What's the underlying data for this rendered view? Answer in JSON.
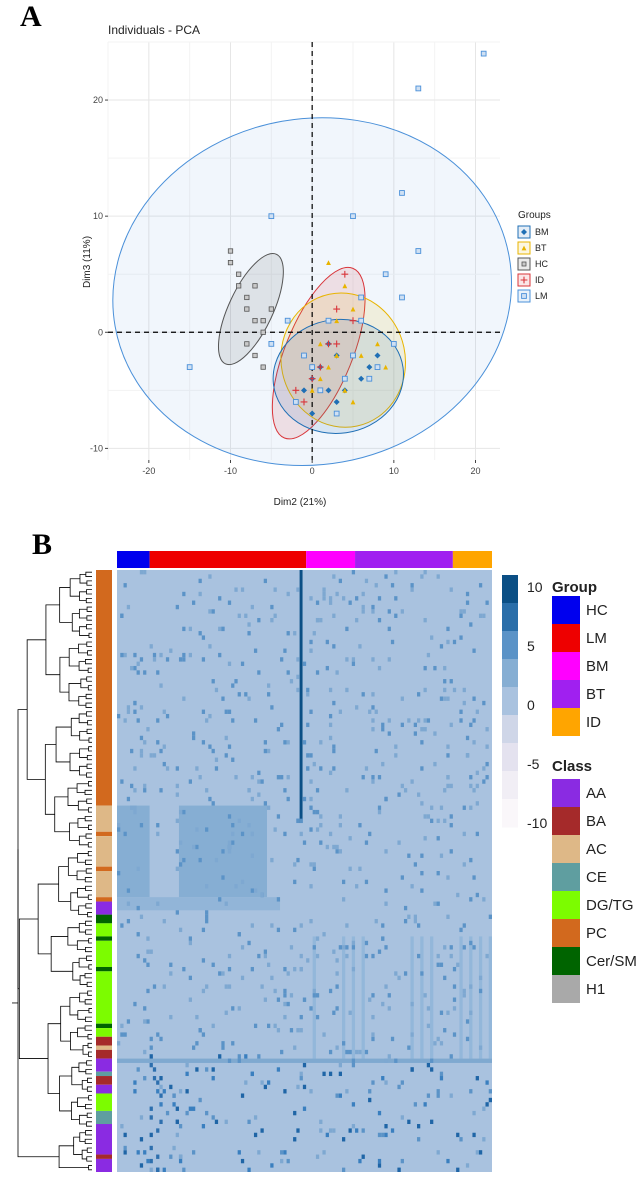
{
  "chart_data": [
    {
      "type": "scatter",
      "panel_label": "A",
      "title": "Individuals - PCA",
      "xlabel": "Dim2 (21%)",
      "ylabel": "Dim3 (11%)",
      "xlim": [
        -25,
        23
      ],
      "ylim": [
        -11,
        25
      ],
      "xticks": [
        -20,
        -10,
        0,
        10,
        20
      ],
      "yticks": [
        -10,
        0,
        10,
        20
      ],
      "grid": true,
      "legend_title": "Groups",
      "legend_position": "right",
      "series": [
        {
          "name": "BM",
          "color": "#1f6fb5",
          "marker": "diamond",
          "points": [
            [
              -1,
              -2
            ],
            [
              0,
              -4
            ],
            [
              1,
              -3
            ],
            [
              2,
              -5
            ],
            [
              3,
              -2
            ],
            [
              4,
              -4
            ],
            [
              2,
              -1
            ],
            [
              4,
              -5
            ],
            [
              5,
              -2
            ],
            [
              6,
              -4
            ],
            [
              7,
              -3
            ],
            [
              8,
              -2
            ],
            [
              3,
              -6
            ],
            [
              -1,
              -5
            ],
            [
              0,
              -7
            ]
          ],
          "ellipse": {
            "cx": 3.2,
            "cy": -3.8,
            "rx": 8.0,
            "ry": 4.9,
            "angle": 8
          }
        },
        {
          "name": "BT",
          "color": "#e8b400",
          "marker": "triangle",
          "points": [
            [
              2,
              6
            ],
            [
              4,
              4
            ],
            [
              3,
              1
            ],
            [
              5,
              2
            ],
            [
              1,
              -1
            ],
            [
              6,
              -2
            ],
            [
              2,
              -3
            ],
            [
              7,
              -4
            ],
            [
              4,
              -5
            ],
            [
              8,
              -1
            ],
            [
              3,
              -2
            ],
            [
              6,
              3
            ],
            [
              0,
              -5
            ],
            [
              5,
              -6
            ],
            [
              9,
              -3
            ],
            [
              1,
              -4
            ]
          ],
          "ellipse": {
            "cx": 3.8,
            "cy": -2.4,
            "rx": 7.6,
            "ry": 5.8,
            "angle": 12
          }
        },
        {
          "name": "HC",
          "color": "#555555",
          "marker": "square",
          "points": [
            [
              -10,
              7
            ],
            [
              -9,
              5
            ],
            [
              -8,
              3
            ],
            [
              -7,
              1
            ],
            [
              -6,
              0
            ],
            [
              -5,
              2
            ],
            [
              -8,
              -1
            ],
            [
              -7,
              -2
            ],
            [
              -6,
              -3
            ],
            [
              -9,
              4
            ],
            [
              -10,
              6
            ],
            [
              -7,
              4
            ],
            [
              -6,
              1
            ],
            [
              -5,
              -1
            ],
            [
              -8,
              2
            ]
          ],
          "ellipse": {
            "cx": -7.5,
            "cy": 2.0,
            "rx": 7.4,
            "ry": 1.9,
            "angle": 65
          }
        },
        {
          "name": "ID",
          "color": "#d9353a",
          "marker": "plus",
          "points": [
            [
              4,
              5
            ],
            [
              3,
              2
            ],
            [
              2,
              -1
            ],
            [
              1,
              -3
            ],
            [
              0,
              -4
            ],
            [
              -1,
              -6
            ],
            [
              -2,
              -5
            ],
            [
              3,
              -1
            ],
            [
              5,
              1
            ]
          ],
          "ellipse": {
            "cx": 0.8,
            "cy": -1.8,
            "rx": 11.2,
            "ry": 2.9,
            "angle": 68
          }
        },
        {
          "name": "LM",
          "color": "#4a90d9",
          "marker": "square",
          "points": [
            [
              21,
              24
            ],
            [
              13,
              21
            ],
            [
              11,
              12
            ],
            [
              5,
              10
            ],
            [
              -5,
              10
            ],
            [
              -15,
              -3
            ],
            [
              13,
              7
            ],
            [
              9,
              5
            ],
            [
              -3,
              1
            ],
            [
              -5,
              -1
            ],
            [
              2,
              1
            ],
            [
              6,
              3
            ],
            [
              11,
              3
            ],
            [
              10,
              -1
            ],
            [
              8,
              -3
            ],
            [
              -2,
              -6
            ],
            [
              1,
              -5
            ],
            [
              5,
              -2
            ],
            [
              7,
              -4
            ],
            [
              3,
              -7
            ],
            [
              0,
              -3
            ],
            [
              -1,
              -2
            ],
            [
              4,
              -4
            ],
            [
              6,
              1
            ]
          ],
          "ellipse": {
            "cx": 0.0,
            "cy": 3.5,
            "rx": 24.5,
            "ry": 14.9,
            "angle": 10
          }
        }
      ]
    },
    {
      "type": "heatmap",
      "panel_label": "B",
      "legend_ticks": [
        10,
        5,
        0,
        -5,
        -10
      ],
      "group_legend": {
        "title": "Group",
        "items": [
          {
            "label": "HC",
            "color": "#0000ee"
          },
          {
            "label": "LM",
            "color": "#ee0000"
          },
          {
            "label": "BM",
            "color": "#ff00ff"
          },
          {
            "label": "BT",
            "color": "#a020f0"
          },
          {
            "label": "ID",
            "color": "#ffa500"
          }
        ]
      },
      "class_legend": {
        "title": "Class",
        "items": [
          {
            "label": "AA",
            "color": "#8a2be2"
          },
          {
            "label": "BA",
            "color": "#a52a2a"
          },
          {
            "label": "AC",
            "color": "#deb887"
          },
          {
            "label": "CE",
            "color": "#5f9ea0"
          },
          {
            "label": "DG/TG",
            "color": "#7cfc00"
          },
          {
            "label": "PC",
            "color": "#d2691e"
          },
          {
            "label": "Cer/SM",
            "color": "#006400"
          },
          {
            "label": "H1",
            "color": "#a9a9a9"
          }
        ]
      },
      "column_groups": [
        {
          "name": "HC",
          "count": 10
        },
        {
          "name": "LM",
          "count": 48
        },
        {
          "name": "BM",
          "count": 15
        },
        {
          "name": "BT",
          "count": 30
        },
        {
          "name": "ID",
          "count": 12
        }
      ],
      "row_classes": [
        {
          "class": "PC",
          "count": 54
        },
        {
          "class": "AC",
          "count": 6
        },
        {
          "class": "PC",
          "count": 1
        },
        {
          "class": "AC",
          "count": 7
        },
        {
          "class": "PC",
          "count": 1
        },
        {
          "class": "AC",
          "count": 6
        },
        {
          "class": "PC",
          "count": 1
        },
        {
          "class": "AA",
          "count": 3
        },
        {
          "class": "Cer/SM",
          "count": 2
        },
        {
          "class": "DG/TG",
          "count": 3
        },
        {
          "class": "Cer/SM",
          "count": 1
        },
        {
          "class": "DG/TG",
          "count": 6
        },
        {
          "class": "Cer/SM",
          "count": 1
        },
        {
          "class": "DG/TG",
          "count": 12
        },
        {
          "class": "Cer/SM",
          "count": 1
        },
        {
          "class": "DG/TG",
          "count": 2
        },
        {
          "class": "BA",
          "count": 2
        },
        {
          "class": "AC",
          "count": 1
        },
        {
          "class": "BA",
          "count": 2
        },
        {
          "class": "AA",
          "count": 3
        },
        {
          "class": "CE",
          "count": 1
        },
        {
          "class": "BA",
          "count": 2
        },
        {
          "class": "AA",
          "count": 2
        },
        {
          "class": "DG/TG",
          "count": 4
        },
        {
          "class": "CE",
          "count": 3
        },
        {
          "class": "AA",
          "count": 7
        },
        {
          "class": "BA",
          "count": 1
        },
        {
          "class": "AA",
          "count": 3
        }
      ],
      "cell_value_range": [
        -10,
        10
      ]
    }
  ]
}
